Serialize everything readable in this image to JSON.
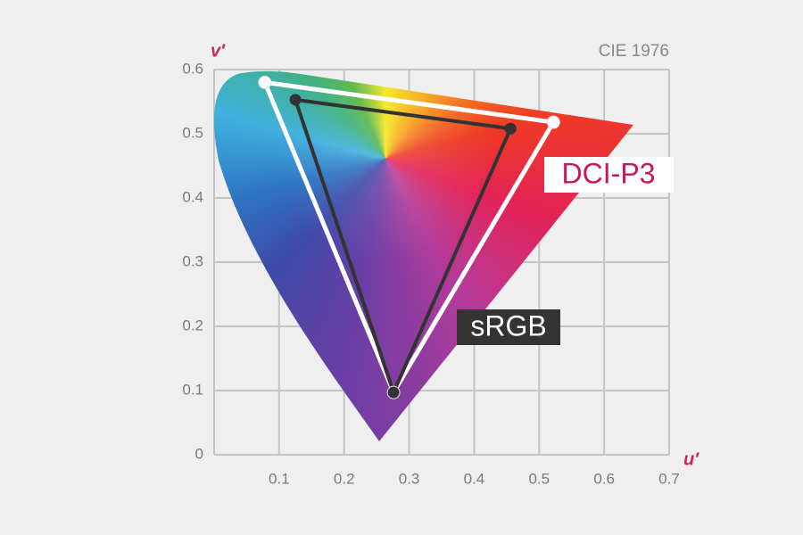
{
  "chart_data": {
    "type": "gamut",
    "title": "CIE 1976",
    "xlabel": "u′",
    "ylabel": "v′",
    "xlim": [
      0,
      0.7
    ],
    "xticks": [
      0.1,
      0.2,
      0.3,
      0.4,
      0.5,
      0.6,
      0.7
    ],
    "ylim": [
      0,
      0.6
    ],
    "yticks": [
      0,
      0.1,
      0.2,
      0.3,
      0.4,
      0.5,
      0.6
    ],
    "grid": true,
    "series": [
      {
        "name": "DCI-P3",
        "color": "#ffffff",
        "x": [
          0.078,
          0.522,
          0.276
        ],
        "values": [
          0.58,
          0.518,
          0.097
        ]
      },
      {
        "name": "sRGB",
        "color": "#333333",
        "x": [
          0.125,
          0.456,
          0.276
        ],
        "values": [
          0.553,
          0.508,
          0.097
        ]
      }
    ]
  }
}
